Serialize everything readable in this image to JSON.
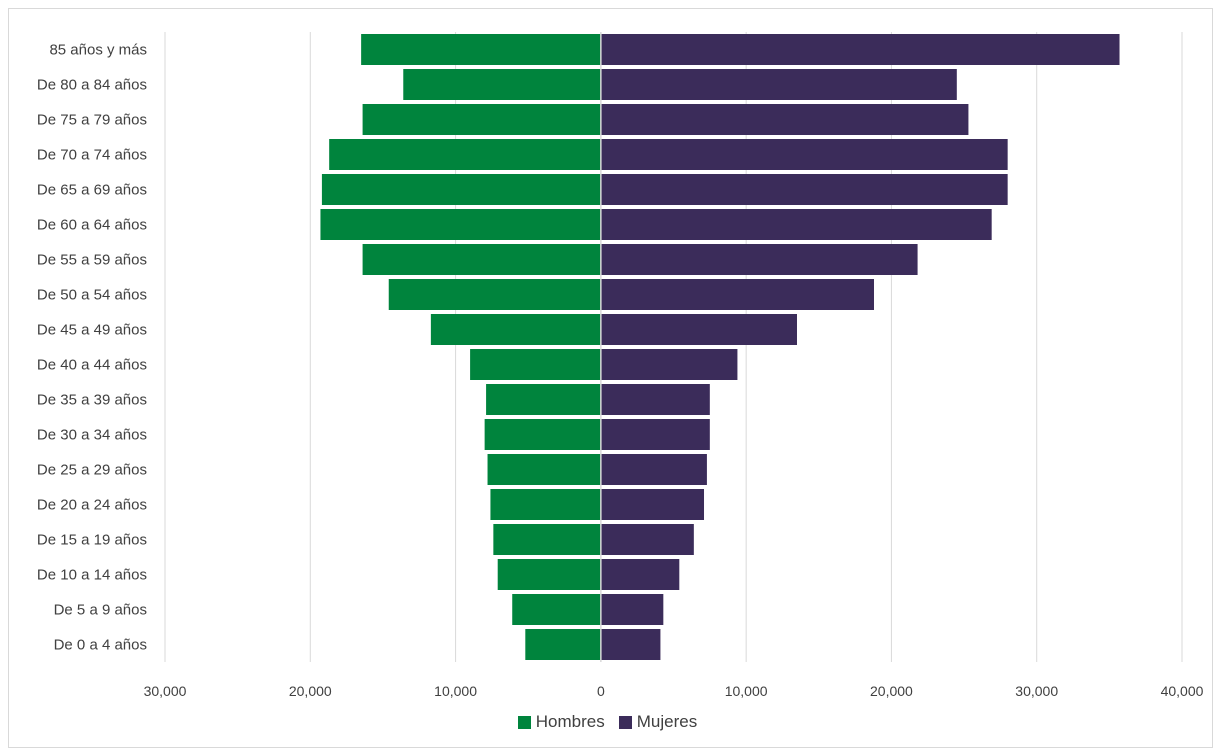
{
  "chart_data": {
    "type": "bar",
    "orientation": "horizontal-diverging",
    "categories": [
      "85 años y más",
      "De 80 a 84 años",
      "De 75 a 79 años",
      "De 70 a 74 años",
      "De 65 a 69 años",
      "De 60 a 64 años",
      "De 55 a 59 años",
      "De 50 a 54 años",
      "De 45 a 49 años",
      "De 40 a 44 años",
      "De 35 a 39 años",
      "De 30 a 34 años",
      "De 25 a 29 años",
      "De 20 a 24 años",
      "De 15 a 19 años",
      "De 10 a 14 años",
      "De 5 a 9 años",
      "De 0 a 4 años"
    ],
    "series": [
      {
        "name": "Hombres",
        "color": "#00843D",
        "values": [
          16500,
          13600,
          16400,
          18700,
          19200,
          19300,
          16400,
          14600,
          11700,
          9000,
          7900,
          8000,
          7800,
          7600,
          7400,
          7100,
          6100,
          5200
        ]
      },
      {
        "name": "Mujeres",
        "color": "#3B2C5A",
        "values": [
          35700,
          24500,
          25300,
          28000,
          28000,
          26900,
          21800,
          18800,
          13500,
          9400,
          7500,
          7500,
          7300,
          7100,
          6400,
          5400,
          4300,
          4100
        ]
      }
    ],
    "xlim": [
      -30000,
      40000
    ],
    "xticks": [
      -30000,
      -20000,
      -10000,
      0,
      10000,
      20000,
      30000,
      40000
    ],
    "xtick_labels": [
      "30,000",
      "20,000",
      "10,000",
      "0",
      "10,000",
      "20,000",
      "30,000",
      "40,000"
    ],
    "grid": true,
    "legend_position": "bottom-center",
    "title": "",
    "xlabel": "",
    "ylabel": ""
  }
}
